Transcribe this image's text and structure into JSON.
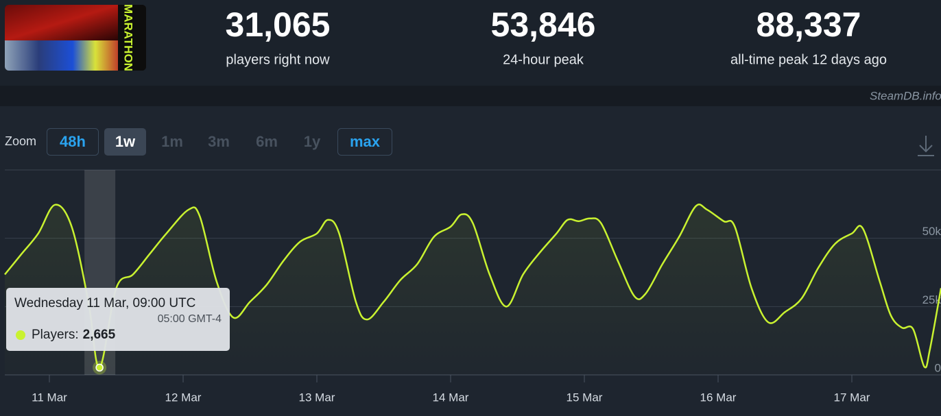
{
  "header": {
    "capsule_text": "MARATHON",
    "stats": [
      {
        "value": "31,065",
        "label": "players right now"
      },
      {
        "value": "53,846",
        "label": "24-hour peak"
      },
      {
        "value": "88,337",
        "label": "all-time peak 12 days ago"
      }
    ],
    "credit": "SteamDB.info"
  },
  "zoom": {
    "label": "Zoom",
    "buttons": [
      {
        "label": "48h",
        "state": "available"
      },
      {
        "label": "1w",
        "state": "active"
      },
      {
        "label": "1m",
        "state": "disabled"
      },
      {
        "label": "3m",
        "state": "disabled"
      },
      {
        "label": "6m",
        "state": "disabled"
      },
      {
        "label": "1y",
        "state": "disabled"
      },
      {
        "label": "max",
        "state": "available"
      }
    ]
  },
  "chart_data": {
    "type": "line",
    "xlim": [
      "10 Mar 16:00",
      "17 Mar 16:00"
    ],
    "xticks": [
      "11 Mar",
      "12 Mar",
      "13 Mar",
      "14 Mar",
      "15 Mar",
      "16 Mar",
      "17 Mar"
    ],
    "ylim": [
      0,
      75000
    ],
    "yticks": [
      0,
      {
        "value": 25000,
        "label": "25k"
      },
      {
        "value": 50000,
        "label": "50k"
      }
    ],
    "grid": true,
    "series": [
      {
        "name": "Players",
        "color": "#c9f230",
        "x": [
          "10 Mar 16:00",
          "10 Mar 19:00",
          "10 Mar 22:00",
          "11 Mar 01:00",
          "11 Mar 04:00",
          "11 Mar 07:00",
          "11 Mar 09:00",
          "11 Mar 12:00",
          "11 Mar 15:00",
          "11 Mar 18:00",
          "11 Mar 21:00",
          "12 Mar 01:00",
          "12 Mar 03:00",
          "12 Mar 06:00",
          "12 Mar 09:00",
          "12 Mar 12:00",
          "12 Mar 15:00",
          "12 Mar 18:00",
          "12 Mar 21:00",
          "13 Mar 00:00",
          "13 Mar 02:00",
          "13 Mar 04:00",
          "13 Mar 07:00",
          "13 Mar 09:00",
          "13 Mar 12:00",
          "13 Mar 15:00",
          "13 Mar 18:00",
          "13 Mar 21:00",
          "14 Mar 00:00",
          "14 Mar 02:00",
          "14 Mar 04:00",
          "14 Mar 07:00",
          "14 Mar 10:00",
          "14 Mar 13:00",
          "14 Mar 16:00",
          "14 Mar 19:00",
          "14 Mar 21:00",
          "14 Mar 23:00",
          "15 Mar 01:00",
          "15 Mar 03:00",
          "15 Mar 06:00",
          "15 Mar 09:00",
          "15 Mar 11:00",
          "15 Mar 14:00",
          "15 Mar 17:00",
          "15 Mar 20:00",
          "15 Mar 22:00",
          "16 Mar 01:00",
          "16 Mar 03:00",
          "16 Mar 06:00",
          "16 Mar 09:00",
          "16 Mar 12:00",
          "16 Mar 15:00",
          "16 Mar 18:00",
          "16 Mar 21:00",
          "17 Mar 00:00",
          "17 Mar 02:00",
          "17 Mar 05:00",
          "17 Mar 07:00",
          "17 Mar 09:00",
          "17 Mar 11:00",
          "17 Mar 13:00",
          "17 Mar 14:00",
          "17 Mar 16:00"
        ],
        "values": [
          36750,
          44250,
          51750,
          62250,
          54250,
          26750,
          2665,
          31750,
          36750,
          44250,
          51750,
          60500,
          58000,
          34250,
          21000,
          26750,
          33000,
          41750,
          48750,
          51750,
          56750,
          51750,
          26750,
          20250,
          26750,
          34750,
          40500,
          50500,
          54250,
          58750,
          55500,
          36750,
          25000,
          36750,
          44750,
          51750,
          56750,
          56250,
          57250,
          55500,
          41750,
          28750,
          29750,
          40500,
          50500,
          61750,
          60500,
          56250,
          54250,
          31750,
          19250,
          23000,
          28000,
          39250,
          48000,
          51750,
          53500,
          34250,
          21750,
          17250,
          16750,
          3000,
          9250,
          31750
        ]
      }
    ],
    "tooltip": {
      "x": "11 Mar 09:00",
      "title": "Wednesday 11 Mar, 09:00 UTC",
      "local_time": "05:00 GMT-4",
      "series_label": "Players:",
      "value_label": "2,665"
    }
  }
}
